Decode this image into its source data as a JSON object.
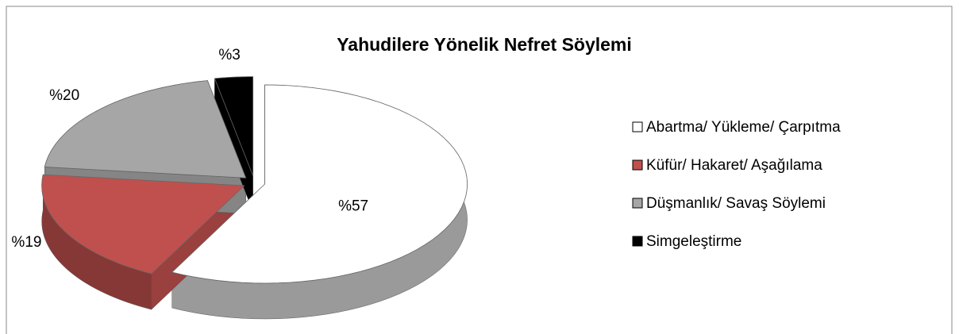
{
  "chart_data": {
    "type": "pie",
    "title": "Yahudilere Yönelik Nefret Söylemi",
    "categories": [
      "Abartma/ Yükleme/ Çarpıtma",
      "Küfür/ Hakaret/ Aşağılama",
      "Düşmanlık/ Savaş Söylemi",
      "Simgeleştirme"
    ],
    "values": [
      57,
      19,
      20,
      3
    ],
    "value_labels": [
      "%57",
      "%19",
      "%20",
      "%3"
    ],
    "colors": [
      "#ffffff",
      "#c0504d",
      "#a6a6a6",
      "#000000"
    ],
    "legend": "right"
  }
}
